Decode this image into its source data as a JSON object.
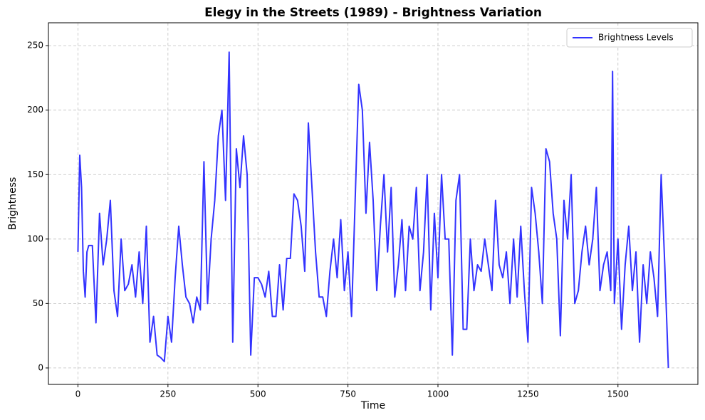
{
  "chart_data": {
    "type": "line",
    "title": "Elegy in the Streets (1989) - Brightness Variation",
    "x_label": "Time",
    "y_label": "Brightness",
    "x": [
      0,
      5,
      10,
      15,
      20,
      25,
      30,
      40,
      50,
      60,
      70,
      80,
      90,
      100,
      110,
      120,
      130,
      140,
      150,
      160,
      170,
      180,
      190,
      200,
      210,
      220,
      230,
      240,
      250,
      260,
      270,
      280,
      290,
      300,
      310,
      320,
      330,
      340,
      350,
      360,
      370,
      380,
      390,
      400,
      410,
      420,
      430,
      440,
      450,
      460,
      470,
      480,
      490,
      500,
      510,
      520,
      530,
      540,
      550,
      560,
      570,
      580,
      590,
      600,
      610,
      620,
      630,
      640,
      650,
      660,
      670,
      680,
      690,
      700,
      710,
      720,
      730,
      740,
      750,
      760,
      770,
      780,
      790,
      800,
      810,
      820,
      830,
      840,
      850,
      860,
      870,
      880,
      890,
      900,
      910,
      920,
      930,
      940,
      950,
      960,
      970,
      980,
      990,
      1000,
      1010,
      1020,
      1030,
      1040,
      1050,
      1060,
      1070,
      1080,
      1090,
      1100,
      1110,
      1120,
      1130,
      1140,
      1150,
      1160,
      1170,
      1180,
      1190,
      1200,
      1210,
      1220,
      1230,
      1240,
      1250,
      1260,
      1270,
      1280,
      1290,
      1300,
      1310,
      1320,
      1330,
      1340,
      1350,
      1360,
      1370,
      1380,
      1390,
      1400,
      1410,
      1420,
      1430,
      1440,
      1450,
      1460,
      1470,
      1480,
      1485,
      1490,
      1500,
      1510,
      1520,
      1530,
      1540,
      1550,
      1560,
      1570,
      1580,
      1590,
      1600,
      1610,
      1620,
      1630,
      1640
    ],
    "series": [
      {
        "name": "Brightness Levels",
        "color": "#3333ff",
        "values": [
          90,
          165,
          140,
          75,
          55,
          90,
          95,
          95,
          35,
          120,
          80,
          100,
          130,
          60,
          40,
          100,
          60,
          65,
          80,
          55,
          90,
          50,
          110,
          20,
          40,
          10,
          8,
          5,
          40,
          20,
          70,
          110,
          80,
          55,
          50,
          35,
          55,
          45,
          160,
          50,
          100,
          130,
          180,
          200,
          130,
          245,
          20,
          170,
          140,
          180,
          150,
          10,
          70,
          70,
          65,
          55,
          75,
          40,
          40,
          80,
          45,
          85,
          85,
          135,
          130,
          110,
          75,
          190,
          140,
          90,
          55,
          55,
          40,
          75,
          100,
          70,
          115,
          60,
          90,
          40,
          130,
          220,
          200,
          120,
          175,
          130,
          60,
          110,
          150,
          90,
          140,
          55,
          80,
          115,
          60,
          110,
          100,
          140,
          60,
          90,
          150,
          45,
          120,
          70,
          150,
          100,
          100,
          10,
          130,
          150,
          30,
          30,
          100,
          60,
          80,
          75,
          100,
          80,
          60,
          130,
          80,
          70,
          90,
          50,
          100,
          55,
          110,
          60,
          20,
          140,
          120,
          90,
          50,
          170,
          160,
          120,
          100,
          25,
          130,
          100,
          150,
          50,
          60,
          90,
          110,
          80,
          100,
          140,
          60,
          80,
          90,
          60,
          230,
          50,
          100,
          30,
          80,
          110,
          60,
          90,
          20,
          80,
          50,
          90,
          70,
          40,
          150,
          80,
          0
        ]
      }
    ],
    "xlim": [
      -82,
      1722
    ],
    "ylim": [
      -12.75,
      267.75
    ],
    "xticks": [
      0,
      250,
      500,
      750,
      1000,
      1250,
      1500
    ],
    "yticks": [
      0,
      50,
      100,
      150,
      200,
      250
    ],
    "grid": true,
    "legend": "upper right"
  }
}
